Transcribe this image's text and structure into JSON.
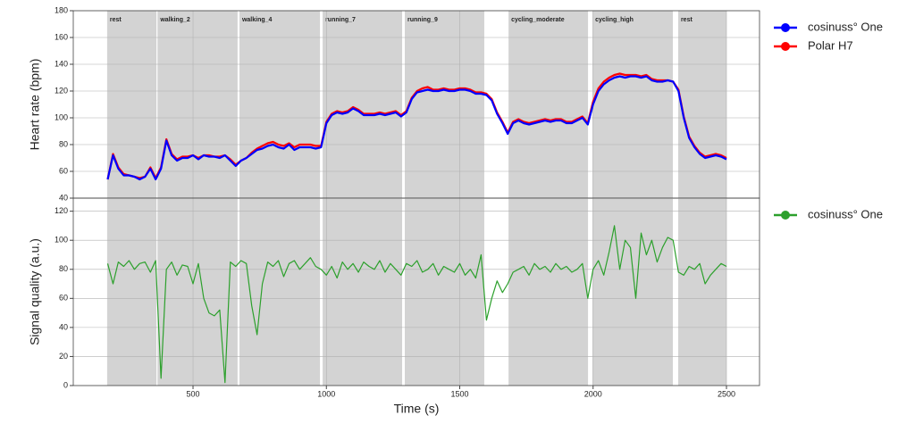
{
  "chart_data": [
    {
      "type": "line",
      "ylabel": "Heart rate (bpm)",
      "x": [
        180,
        200,
        220,
        240,
        260,
        280,
        300,
        320,
        340,
        360,
        380,
        400,
        420,
        440,
        460,
        480,
        500,
        520,
        540,
        560,
        580,
        600,
        620,
        640,
        660,
        680,
        700,
        720,
        740,
        760,
        780,
        800,
        820,
        840,
        860,
        880,
        900,
        920,
        940,
        960,
        980,
        1000,
        1020,
        1040,
        1060,
        1080,
        1100,
        1120,
        1140,
        1160,
        1180,
        1200,
        1220,
        1240,
        1260,
        1280,
        1300,
        1320,
        1340,
        1360,
        1380,
        1400,
        1420,
        1440,
        1460,
        1480,
        1500,
        1520,
        1540,
        1560,
        1580,
        1600,
        1620,
        1640,
        1660,
        1680,
        1700,
        1720,
        1740,
        1760,
        1780,
        1800,
        1820,
        1840,
        1860,
        1880,
        1900,
        1920,
        1940,
        1960,
        1980,
        2000,
        2020,
        2040,
        2060,
        2080,
        2100,
        2120,
        2140,
        2160,
        2180,
        2200,
        2220,
        2240,
        2260,
        2280,
        2300,
        2320,
        2340,
        2360,
        2380,
        2400,
        2420,
        2440,
        2460,
        2480,
        2500
      ],
      "series": [
        {
          "name": "Polar H7",
          "color": "#ff0000",
          "values": [
            54,
            73,
            63,
            58,
            57,
            56,
            55,
            56,
            63,
            55,
            63,
            84,
            73,
            69,
            71,
            71,
            72,
            70,
            72,
            72,
            71,
            71,
            72,
            69,
            65,
            68,
            70,
            74,
            77,
            79,
            81,
            82,
            80,
            79,
            81,
            78,
            80,
            80,
            80,
            79,
            79,
            97,
            103,
            105,
            104,
            105,
            108,
            106,
            103,
            103,
            103,
            104,
            103,
            104,
            105,
            102,
            105,
            115,
            120,
            122,
            123,
            121,
            121,
            122,
            121,
            121,
            122,
            122,
            121,
            119,
            119,
            118,
            114,
            104,
            97,
            89,
            97,
            99,
            97,
            96,
            97,
            98,
            99,
            98,
            99,
            99,
            97,
            97,
            99,
            101,
            96,
            112,
            122,
            127,
            130,
            132,
            133,
            132,
            132,
            132,
            131,
            132,
            129,
            128,
            128,
            128,
            127,
            121,
            101,
            86,
            79,
            74,
            71,
            72,
            73,
            72,
            70
          ]
        },
        {
          "name": "cosinuss° One",
          "color": "#0000ff",
          "values": [
            54,
            72,
            62,
            57,
            57,
            56,
            54,
            56,
            62,
            54,
            62,
            83,
            72,
            68,
            70,
            70,
            72,
            69,
            72,
            71,
            71,
            70,
            72,
            68,
            64,
            68,
            70,
            73,
            76,
            77,
            79,
            80,
            78,
            77,
            80,
            76,
            78,
            78,
            78,
            77,
            78,
            96,
            102,
            104,
            103,
            104,
            107,
            105,
            102,
            102,
            102,
            103,
            102,
            103,
            104,
            101,
            104,
            114,
            119,
            120,
            121,
            120,
            120,
            121,
            120,
            120,
            121,
            121,
            120,
            118,
            118,
            117,
            113,
            103,
            96,
            88,
            96,
            98,
            96,
            95,
            96,
            97,
            98,
            97,
            98,
            98,
            96,
            96,
            98,
            100,
            95,
            110,
            120,
            125,
            128,
            130,
            131,
            130,
            131,
            131,
            130,
            131,
            128,
            127,
            127,
            128,
            127,
            120,
            100,
            85,
            78,
            73,
            70,
            71,
            72,
            71,
            69
          ]
        }
      ],
      "spans": [
        {
          "start": 178,
          "end": 363,
          "label": "rest"
        },
        {
          "start": 367,
          "end": 667,
          "label": "walking_2"
        },
        {
          "start": 674,
          "end": 976,
          "label": "walking_4"
        },
        {
          "start": 986,
          "end": 1284,
          "label": "running_7"
        },
        {
          "start": 1294,
          "end": 1592,
          "label": "running_9"
        },
        {
          "start": 1683,
          "end": 1981,
          "label": "cycling_moderate"
        },
        {
          "start": 1998,
          "end": 2299,
          "label": "cycling_high"
        },
        {
          "start": 2319,
          "end": 2500,
          "label": "rest"
        }
      ],
      "xlim": [
        51,
        2624
      ],
      "ylim": [
        40,
        180
      ],
      "yticks": [
        40,
        60,
        80,
        100,
        120,
        140,
        160,
        180
      ],
      "grid": true,
      "legend": "outside right"
    },
    {
      "type": "line",
      "ylabel": "Signal quality (a.u.)",
      "xlabel": "Time (s)",
      "x": [
        180,
        200,
        220,
        240,
        260,
        280,
        300,
        320,
        340,
        360,
        380,
        400,
        420,
        440,
        460,
        480,
        500,
        520,
        540,
        560,
        580,
        600,
        620,
        640,
        660,
        680,
        700,
        720,
        740,
        760,
        780,
        800,
        820,
        840,
        860,
        880,
        900,
        920,
        940,
        960,
        980,
        1000,
        1020,
        1040,
        1060,
        1080,
        1100,
        1120,
        1140,
        1160,
        1180,
        1200,
        1220,
        1240,
        1260,
        1280,
        1300,
        1320,
        1340,
        1360,
        1380,
        1400,
        1420,
        1440,
        1460,
        1480,
        1500,
        1520,
        1540,
        1560,
        1580,
        1600,
        1620,
        1640,
        1660,
        1680,
        1700,
        1720,
        1740,
        1760,
        1780,
        1800,
        1820,
        1840,
        1860,
        1880,
        1900,
        1920,
        1940,
        1960,
        1980,
        2000,
        2020,
        2040,
        2060,
        2080,
        2100,
        2120,
        2140,
        2160,
        2180,
        2200,
        2220,
        2240,
        2260,
        2280,
        2300,
        2320,
        2340,
        2360,
        2380,
        2400,
        2420,
        2440,
        2460,
        2480,
        2500
      ],
      "series": [
        {
          "name": "cosinuss° One",
          "color": "#2ca02c",
          "values": [
            84,
            70,
            85,
            82,
            86,
            80,
            84,
            85,
            78,
            86,
            5,
            80,
            85,
            76,
            83,
            82,
            70,
            84,
            60,
            50,
            48,
            52,
            2,
            85,
            82,
            86,
            84,
            55,
            35,
            70,
            85,
            82,
            86,
            75,
            84,
            86,
            80,
            84,
            88,
            82,
            80,
            76,
            82,
            74,
            85,
            80,
            84,
            78,
            85,
            82,
            80,
            86,
            78,
            84,
            80,
            76,
            84,
            82,
            86,
            78,
            80,
            84,
            76,
            82,
            80,
            78,
            84,
            76,
            80,
            74,
            90,
            45,
            60,
            72,
            64,
            70,
            78,
            80,
            82,
            76,
            84,
            80,
            82,
            78,
            84,
            80,
            82,
            78,
            80,
            84,
            60,
            80,
            86,
            76,
            92,
            110,
            80,
            100,
            95,
            60,
            105,
            90,
            100,
            85,
            95,
            102,
            100,
            78,
            76,
            82,
            80,
            84,
            70,
            76,
            80,
            84,
            82
          ]
        }
      ],
      "xlim": [
        51,
        2624
      ],
      "xticks": [
        500,
        1000,
        1500,
        2000,
        2500
      ],
      "ylim": [
        0,
        129
      ],
      "yticks": [
        0,
        20,
        40,
        60,
        80,
        100,
        120
      ],
      "grid": true,
      "legend": "outside right"
    }
  ]
}
